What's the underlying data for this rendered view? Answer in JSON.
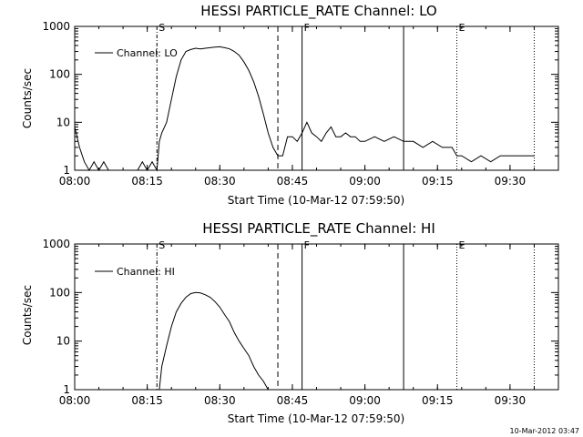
{
  "footer": {
    "timestamp": "10-Mar-2012 03:47"
  },
  "chart_data": [
    {
      "type": "line",
      "title": "HESSI PARTICLE_RATE Channel: LO",
      "xlabel": "Start Time (10-Mar-12 07:59:50)",
      "ylabel": "Counts/sec",
      "y_scale": "log",
      "ylim": [
        1,
        1000
      ],
      "xlim": [
        "08:00",
        "09:40"
      ],
      "x_ticks": [
        "08:00",
        "08:15",
        "08:30",
        "08:45",
        "09:00",
        "09:15",
        "09:30"
      ],
      "y_ticks": [
        "1",
        "10",
        "100",
        "1000"
      ],
      "legend": {
        "position": "top-left",
        "entries": [
          "Channel: LO"
        ]
      },
      "vertical_markers": [
        {
          "time": "08:17",
          "style": "dash-dot",
          "label": "S"
        },
        {
          "time": "08:42",
          "style": "dashed",
          "label": ""
        },
        {
          "time": "08:47",
          "style": "solid",
          "label": "F"
        },
        {
          "time": "09:08",
          "style": "solid",
          "label": ""
        },
        {
          "time": "09:19",
          "style": "dotted",
          "label": "E"
        },
        {
          "time": "09:35",
          "style": "dotted",
          "label": ""
        }
      ],
      "series": [
        {
          "name": "Channel: LO",
          "points": [
            [
              "08:00",
              8
            ],
            [
              "08:01",
              3
            ],
            [
              "08:02",
              1.5
            ],
            [
              "08:03",
              1
            ],
            [
              "08:04",
              1.5
            ],
            [
              "08:05",
              1
            ],
            [
              "08:06",
              1.5
            ],
            [
              "08:07",
              1
            ],
            [
              "08:13",
              1
            ],
            [
              "08:14",
              1.5
            ],
            [
              "08:15",
              1
            ],
            [
              "08:16",
              1.5
            ],
            [
              "08:17",
              1
            ],
            [
              "08:17.5",
              4
            ],
            [
              "08:18",
              6
            ],
            [
              "08:19",
              10
            ],
            [
              "08:20",
              30
            ],
            [
              "08:21",
              90
            ],
            [
              "08:22",
              200
            ],
            [
              "08:23",
              300
            ],
            [
              "08:24",
              330
            ],
            [
              "08:25",
              350
            ],
            [
              "08:26",
              340
            ],
            [
              "08:27",
              350
            ],
            [
              "08:28",
              360
            ],
            [
              "08:29",
              370
            ],
            [
              "08:30",
              375
            ],
            [
              "08:31",
              360
            ],
            [
              "08:32",
              340
            ],
            [
              "08:33",
              300
            ],
            [
              "08:34",
              250
            ],
            [
              "08:35",
              180
            ],
            [
              "08:36",
              120
            ],
            [
              "08:37",
              70
            ],
            [
              "08:38",
              35
            ],
            [
              "08:39",
              15
            ],
            [
              "08:40",
              6
            ],
            [
              "08:41",
              3
            ],
            [
              "08:42",
              2
            ],
            [
              "08:43",
              2
            ],
            [
              "08:44",
              5
            ],
            [
              "08:45",
              5
            ],
            [
              "08:46",
              4
            ],
            [
              "08:47",
              6
            ],
            [
              "08:48",
              10
            ],
            [
              "08:49",
              6
            ],
            [
              "08:50",
              5
            ],
            [
              "08:51",
              4
            ],
            [
              "08:52",
              6
            ],
            [
              "08:53",
              8
            ],
            [
              "08:54",
              5
            ],
            [
              "08:55",
              5
            ],
            [
              "08:56",
              6
            ],
            [
              "08:57",
              5
            ],
            [
              "08:58",
              5
            ],
            [
              "08:59",
              4
            ],
            [
              "09:00",
              4
            ],
            [
              "09:02",
              5
            ],
            [
              "09:04",
              4
            ],
            [
              "09:06",
              5
            ],
            [
              "09:08",
              4
            ],
            [
              "09:10",
              4
            ],
            [
              "09:12",
              3
            ],
            [
              "09:14",
              4
            ],
            [
              "09:16",
              3
            ],
            [
              "09:18",
              3
            ],
            [
              "09:19",
              2
            ],
            [
              "09:20",
              2
            ],
            [
              "09:22",
              1.5
            ],
            [
              "09:24",
              2
            ],
            [
              "09:26",
              1.5
            ],
            [
              "09:28",
              2
            ],
            [
              "09:30",
              2
            ],
            [
              "09:32",
              2
            ],
            [
              "09:34",
              2
            ],
            [
              "09:35",
              2
            ]
          ]
        }
      ]
    },
    {
      "type": "line",
      "title": "HESSI PARTICLE_RATE Channel: HI",
      "xlabel": "Start Time (10-Mar-12 07:59:50)",
      "ylabel": "Counts/sec",
      "y_scale": "log",
      "ylim": [
        1,
        1000
      ],
      "xlim": [
        "08:00",
        "09:40"
      ],
      "x_ticks": [
        "08:00",
        "08:15",
        "08:30",
        "08:45",
        "09:00",
        "09:15",
        "09:30"
      ],
      "y_ticks": [
        "1",
        "10",
        "100",
        "1000"
      ],
      "legend": {
        "position": "top-left",
        "entries": [
          "Channel: HI"
        ]
      },
      "vertical_markers": [
        {
          "time": "08:17",
          "style": "dash-dot",
          "label": "S"
        },
        {
          "time": "08:42",
          "style": "dashed",
          "label": ""
        },
        {
          "time": "08:47",
          "style": "solid",
          "label": "F"
        },
        {
          "time": "09:08",
          "style": "solid",
          "label": ""
        },
        {
          "time": "09:19",
          "style": "dotted",
          "label": "E"
        },
        {
          "time": "09:35",
          "style": "dotted",
          "label": ""
        }
      ],
      "series": [
        {
          "name": "Channel: HI",
          "points": [
            [
              "08:17.5",
              1
            ],
            [
              "08:18",
              3
            ],
            [
              "08:19",
              8
            ],
            [
              "08:20",
              20
            ],
            [
              "08:21",
              40
            ],
            [
              "08:22",
              60
            ],
            [
              "08:23",
              80
            ],
            [
              "08:24",
              95
            ],
            [
              "08:25",
              100
            ],
            [
              "08:26",
              98
            ],
            [
              "08:27",
              90
            ],
            [
              "08:28",
              80
            ],
            [
              "08:29",
              65
            ],
            [
              "08:30",
              50
            ],
            [
              "08:31",
              35
            ],
            [
              "08:32",
              25
            ],
            [
              "08:33",
              15
            ],
            [
              "08:34",
              10
            ],
            [
              "08:35",
              7
            ],
            [
              "08:36",
              5
            ],
            [
              "08:37",
              3
            ],
            [
              "08:38",
              2
            ],
            [
              "08:39",
              1.5
            ],
            [
              "08:40",
              1
            ]
          ]
        }
      ]
    }
  ]
}
